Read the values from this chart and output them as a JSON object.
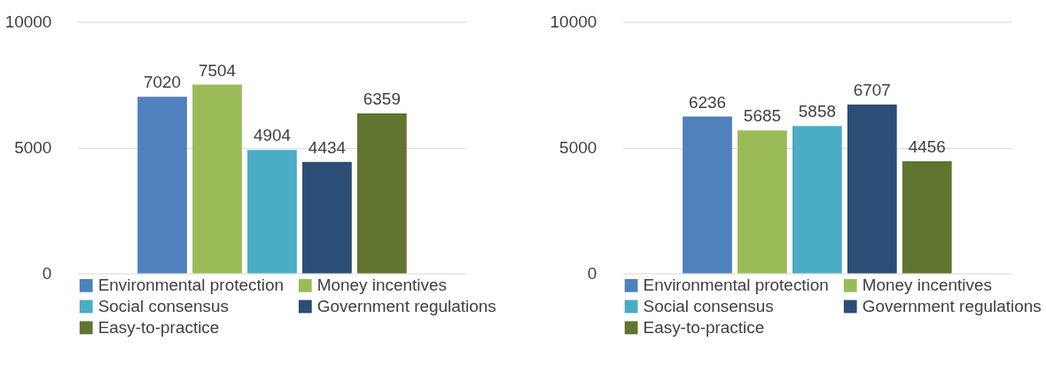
{
  "chart_data": [
    {
      "type": "bar",
      "categories": [
        null
      ],
      "series": [
        {
          "name": "Environmental protection",
          "color": "#4f81bd",
          "values": [
            7020
          ]
        },
        {
          "name": "Money incentives",
          "color": "#9bbb59",
          "values": [
            7504
          ]
        },
        {
          "name": "Social consensus",
          "color": "#4bacc6",
          "values": [
            4904
          ]
        },
        {
          "name": "Government regulations",
          "color": "#2c4d75",
          "values": [
            4434
          ]
        },
        {
          "name": "Easy-to-practice",
          "color": "#5f7530",
          "values": [
            6359
          ]
        }
      ],
      "ylim": [
        0,
        10000
      ],
      "yticks": [
        0,
        5000,
        10000
      ],
      "grid": "y",
      "data_labels": true,
      "legend": "bottom"
    },
    {
      "type": "bar",
      "categories": [
        null
      ],
      "series": [
        {
          "name": "Environmental protection",
          "color": "#4f81bd",
          "values": [
            6236
          ]
        },
        {
          "name": "Money incentives",
          "color": "#9bbb59",
          "values": [
            5685
          ]
        },
        {
          "name": "Social consensus",
          "color": "#4bacc6",
          "values": [
            5858
          ]
        },
        {
          "name": "Government regulations",
          "color": "#2c4d75",
          "values": [
            6707
          ]
        },
        {
          "name": "Easy-to-practice",
          "color": "#5f7530",
          "values": [
            4456
          ]
        }
      ],
      "ylim": [
        0,
        10000
      ],
      "yticks": [
        0,
        5000,
        10000
      ],
      "grid": "y",
      "data_labels": true,
      "legend": "bottom"
    }
  ]
}
